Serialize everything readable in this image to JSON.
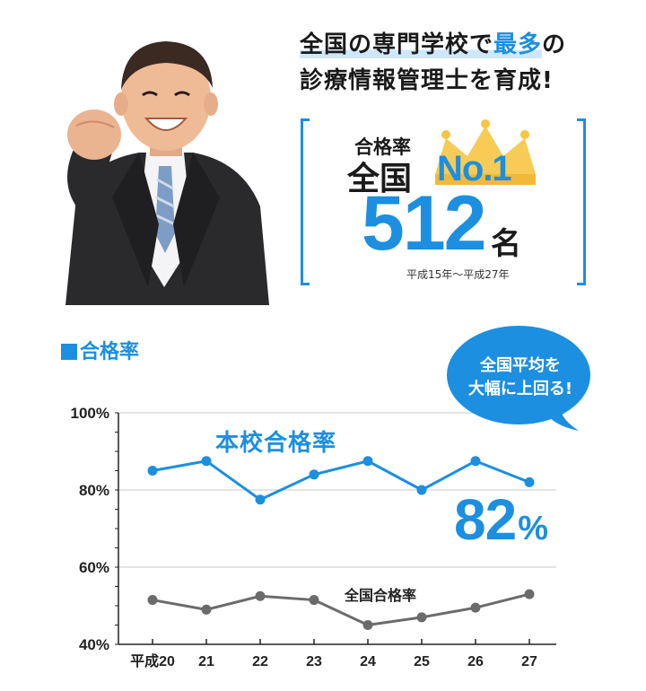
{
  "headline": {
    "line1_prefix": "全国の専門学校で",
    "line1_accent": "最多",
    "line1_suffix": "の",
    "line2": "診療情報管理士を育成!"
  },
  "award": {
    "label_top": "合格率",
    "label_main": "全国",
    "rank": "No.1",
    "count": "512",
    "count_unit": "名",
    "period": "平成15年～平成27年"
  },
  "colors": {
    "accent": "#1c8fe0",
    "national_line": "#6b6b6b",
    "crown": "#f6c543"
  },
  "bubble": {
    "line1": "全国平均を",
    "line2": "大幅に上回る!"
  },
  "chart_data": {
    "type": "line",
    "title": "合格率",
    "categories": [
      "平成20",
      "21",
      "22",
      "23",
      "24",
      "25",
      "26",
      "27"
    ],
    "y_ticks": [
      "40%",
      "60%",
      "80%",
      "100%"
    ],
    "ylim": [
      40,
      100
    ],
    "grid": true,
    "series": [
      {
        "name": "本校合格率",
        "values": [
          85,
          87.5,
          77.5,
          84,
          87.5,
          80,
          87.5,
          82
        ],
        "color": "#1c8fe0"
      },
      {
        "name": "全国合格率",
        "values": [
          51.5,
          49,
          52.5,
          51.5,
          45,
          47,
          49.5,
          53
        ],
        "color": "#6b6b6b"
      }
    ],
    "highlight": {
      "value": "82",
      "unit": "%"
    }
  }
}
